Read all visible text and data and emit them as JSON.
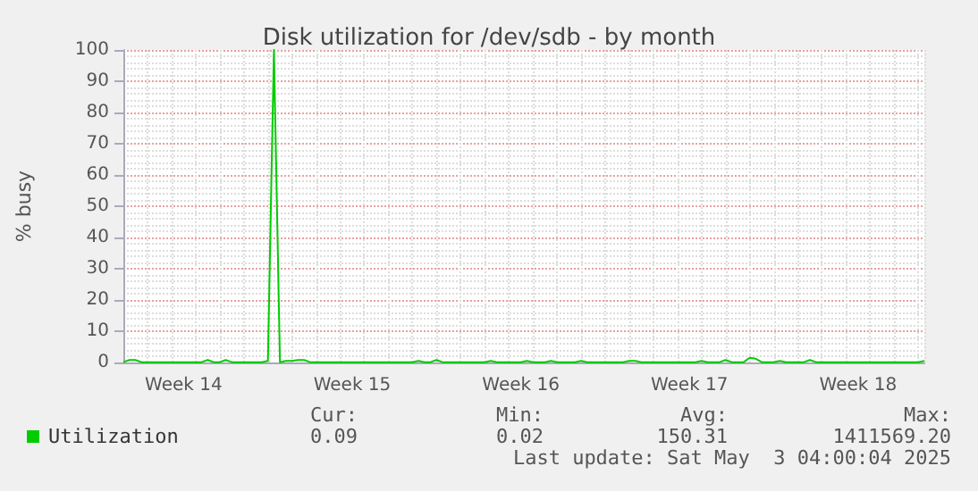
{
  "chart_data": {
    "type": "line",
    "title": "Disk utilization for /dev/sdb - by month",
    "ylabel": "% busy",
    "categories": [
      null,
      null,
      null,
      null,
      null,
      null,
      null,
      null,
      null,
      null,
      "Week 14",
      null,
      null,
      null,
      null,
      null,
      null,
      null,
      null,
      null,
      null,
      null,
      null,
      null,
      null,
      null,
      null,
      null,
      null,
      null,
      null,
      null,
      null,
      null,
      null,
      null,
      null,
      null,
      "Week 15",
      null,
      null,
      null,
      null,
      null,
      null,
      null,
      null,
      null,
      null,
      null,
      null,
      null,
      null,
      null,
      null,
      null,
      null,
      null,
      null,
      null,
      null,
      null,
      null,
      null,
      null,
      null,
      "Week 16",
      null,
      null,
      null,
      null,
      null,
      null,
      null,
      null,
      null,
      null,
      null,
      null,
      null,
      null,
      null,
      null,
      null,
      null,
      null,
      null,
      null,
      null,
      null,
      null,
      null,
      null,
      null,
      "Week 17",
      null,
      null,
      null,
      null,
      null,
      null,
      null,
      null,
      null,
      null,
      null,
      null,
      null,
      null,
      null,
      null,
      null,
      null,
      null,
      null,
      null,
      null,
      null,
      null,
      null,
      null,
      null,
      "Week 18",
      null,
      null,
      null,
      null,
      null,
      null,
      null,
      null,
      null,
      null,
      null
    ],
    "ylim": [
      0,
      100
    ],
    "yticks": [
      0,
      10,
      20,
      30,
      40,
      50,
      60,
      70,
      80,
      90,
      100
    ],
    "grid": true,
    "legend": "bottom left",
    "marker": "none",
    "series": [
      {
        "name": "Utilization",
        "color": "#00cc00",
        "values": [
          0.1,
          0.8,
          0.8,
          0.1,
          0.1,
          0.1,
          0.1,
          0.1,
          0.1,
          0.1,
          0.1,
          0.1,
          0.1,
          0.1,
          0.8,
          0.1,
          0.1,
          0.8,
          0.1,
          0.1,
          0.1,
          0.1,
          0.1,
          0.1,
          0.5,
          100,
          0.1,
          0.5,
          0.5,
          0.8,
          0.8,
          0.1,
          0.1,
          0.1,
          0.1,
          0.1,
          0.1,
          0.1,
          0.1,
          0.1,
          0.1,
          0.1,
          0.1,
          0.1,
          0.1,
          0.1,
          0.1,
          0.1,
          0.1,
          0.5,
          0.1,
          0.1,
          0.8,
          0.1,
          0.1,
          0.1,
          0.1,
          0.1,
          0.1,
          0.1,
          0.1,
          0.5,
          0.1,
          0.1,
          0.1,
          0.1,
          0.1,
          0.5,
          0.1,
          0.1,
          0.1,
          0.5,
          0.1,
          0.1,
          0.1,
          0.1,
          0.5,
          0.1,
          0.1,
          0.1,
          0.1,
          0.1,
          0.1,
          0.1,
          0.5,
          0.5,
          0.1,
          0.1,
          0.1,
          0.1,
          0.1,
          0.1,
          0.1,
          0.1,
          0.1,
          0.1,
          0.5,
          0.1,
          0.1,
          0.1,
          0.8,
          0.1,
          0.1,
          0.1,
          1.5,
          1.2,
          0.1,
          0.1,
          0.1,
          0.5,
          0.1,
          0.1,
          0.1,
          0.1,
          0.8,
          0.1,
          0.1,
          0.1,
          0.1,
          0.1,
          0.1,
          0.1,
          0.1,
          0.1,
          0.1,
          0.1,
          0.1,
          0.1,
          0.1,
          0.1,
          0.1,
          0.1,
          0.1,
          0.5
        ]
      }
    ],
    "annotations": [
      "Cur:",
      "Min:",
      "Avg:",
      "Max:",
      "0.09",
      "0.02",
      "150.31",
      "1411569.20",
      "Last update: Sat May  3 04:00:04 2025"
    ]
  }
}
